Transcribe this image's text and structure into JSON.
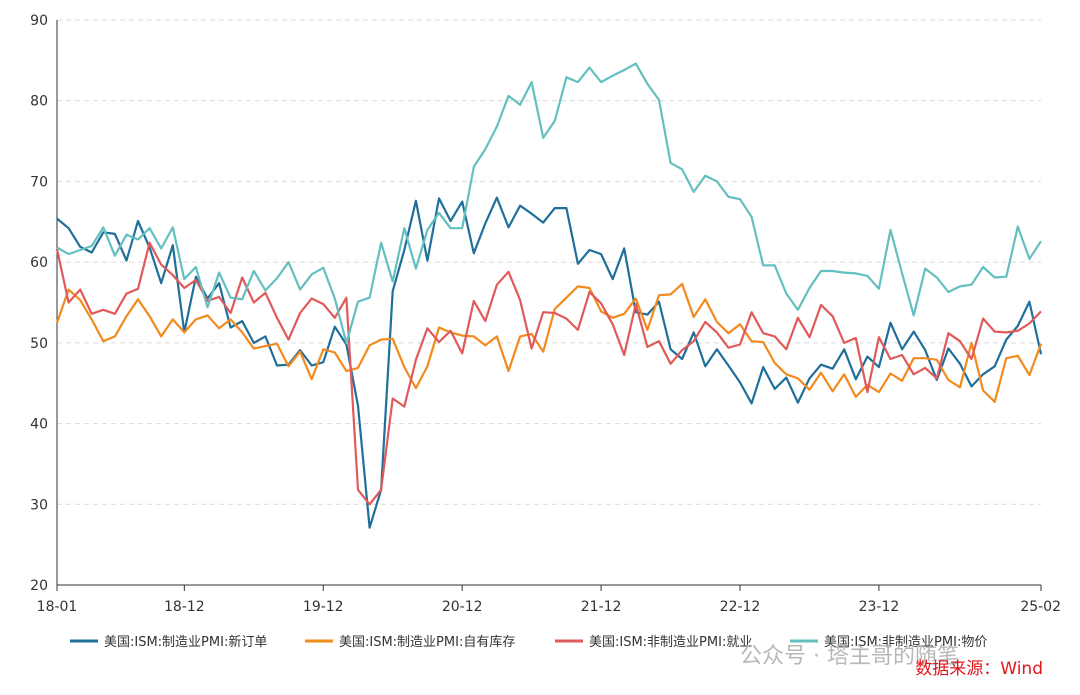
{
  "chart_data": {
    "type": "line",
    "title": "",
    "xlabel": "",
    "ylabel": "",
    "ylim": [
      20,
      90
    ],
    "y_ticks": [
      "20",
      "30",
      "40",
      "50",
      "60",
      "70",
      "80",
      "90"
    ],
    "x_tick_labels": [
      "18-01",
      "18-12",
      "19-12",
      "20-12",
      "21-12",
      "22-12",
      "23-12",
      "25-02"
    ],
    "x_tick_index": [
      0,
      11,
      23,
      35,
      47,
      59,
      71,
      85
    ],
    "grid": "horizontal-dashed",
    "legend_position": "bottom",
    "series": [
      {
        "name": "美国:ISM:制造业PMI:新订单",
        "color": "#1f6f9a",
        "values": [
          65.4,
          64.2,
          61.9,
          61.2,
          63.7,
          63.5,
          60.2,
          65.1,
          61.8,
          57.4,
          62.1,
          51.3,
          58.2,
          55.5,
          57.4,
          51.9,
          52.7,
          50.0,
          50.8,
          47.2,
          47.3,
          49.1,
          47.2,
          47.6,
          52.0,
          49.8,
          42.2,
          27.1,
          31.8,
          56.4,
          61.5,
          67.6,
          60.2,
          67.9,
          65.1,
          67.5,
          61.1,
          64.8,
          68.0,
          64.3,
          67.0,
          66.0,
          64.9,
          66.7,
          66.7,
          59.8,
          61.5,
          61.0,
          57.9,
          61.7,
          53.8,
          53.5,
          55.1,
          49.2,
          48.0,
          51.3,
          47.1,
          49.2,
          47.2,
          45.1,
          42.5,
          47.0,
          44.3,
          45.7,
          42.6,
          45.6,
          47.3,
          46.8,
          49.2,
          45.5,
          48.3,
          47.0,
          52.5,
          49.2,
          51.4,
          49.1,
          45.4,
          49.3,
          47.4,
          44.6,
          46.1,
          47.1,
          50.4,
          52.1,
          55.1,
          48.6
        ]
      },
      {
        "name": "美国:ISM:制造业PMI:自有库存",
        "color": "#f38a1d",
        "values": [
          52.5,
          56.6,
          55.3,
          52.9,
          50.2,
          50.8,
          53.3,
          55.4,
          53.3,
          50.8,
          52.9,
          51.3,
          52.9,
          53.4,
          51.8,
          52.9,
          51.3,
          49.3,
          49.6,
          49.9,
          47.1,
          48.9,
          45.5,
          49.2,
          48.8,
          46.5,
          46.9,
          49.7,
          50.4,
          50.5,
          47.0,
          44.4,
          47.1,
          51.9,
          51.3,
          50.9,
          50.8,
          49.7,
          50.8,
          46.5,
          50.8,
          51.1,
          48.9,
          54.2,
          55.6,
          57.0,
          56.8,
          53.9,
          53.1,
          53.6,
          55.5,
          51.6,
          55.9,
          56.0,
          57.3,
          53.2,
          55.4,
          52.6,
          51.2,
          52.3,
          50.2,
          50.1,
          47.5,
          46.1,
          45.6,
          44.2,
          46.3,
          44.0,
          46.1,
          43.3,
          44.8,
          43.9,
          46.2,
          45.3,
          48.1,
          48.1,
          47.9,
          45.4,
          44.5,
          50.0,
          44.1,
          42.7,
          48.1,
          48.4,
          46.0,
          49.9
        ]
      },
      {
        "name": "美国:ISM:非制造业PMI:就业",
        "color": "#e05a5b",
        "values": [
          61.6,
          55.0,
          56.6,
          53.6,
          54.1,
          53.6,
          56.1,
          56.7,
          62.4,
          59.7,
          58.4,
          56.8,
          57.8,
          55.2,
          55.7,
          53.7,
          58.1,
          55.0,
          56.2,
          53.1,
          50.4,
          53.7,
          55.5,
          54.8,
          53.1,
          55.6,
          31.8,
          30.0,
          31.8,
          43.1,
          42.1,
          47.9,
          51.8,
          50.1,
          51.5,
          48.7,
          55.2,
          52.7,
          57.2,
          58.8,
          55.3,
          49.3,
          53.8,
          53.7,
          53.0,
          51.6,
          56.3,
          54.9,
          52.3,
          48.5,
          54.8,
          49.5,
          50.2,
          47.4,
          49.1,
          50.2,
          52.6,
          51.3,
          49.4,
          49.8,
          53.8,
          51.2,
          50.8,
          49.2,
          53.1,
          50.7,
          54.7,
          53.3,
          50.0,
          50.6,
          43.9,
          50.7,
          48.0,
          48.5,
          46.1,
          46.9,
          45.6,
          51.2,
          50.2,
          48.0,
          53.0,
          51.4,
          51.3,
          51.5,
          52.4,
          53.9
        ]
      },
      {
        "name": "美国:ISM:非制造业PMI:物价",
        "color": "#63bfc0",
        "values": [
          61.8,
          61.0,
          61.5,
          62.0,
          64.3,
          60.8,
          63.4,
          62.8,
          64.2,
          61.7,
          64.3,
          57.9,
          59.4,
          54.4,
          58.7,
          55.6,
          55.4,
          58.9,
          56.5,
          58.0,
          60.0,
          56.6,
          58.5,
          59.3,
          55.5,
          50.0,
          55.1,
          55.6,
          62.4,
          57.6,
          64.2,
          59.2,
          64.0,
          66.1,
          64.2,
          64.2,
          71.8,
          74.0,
          76.8,
          80.6,
          79.5,
          82.3,
          75.4,
          77.5,
          82.9,
          82.3,
          84.1,
          82.3,
          83.1,
          83.8,
          84.6,
          82.1,
          80.1,
          72.3,
          71.5,
          68.7,
          70.7,
          70.0,
          68.1,
          67.8,
          65.6,
          59.6,
          59.6,
          56.1,
          54.1,
          56.8,
          58.9,
          58.9,
          58.7,
          58.6,
          58.3,
          56.7,
          64.0,
          58.6,
          53.4,
          59.2,
          58.1,
          56.3,
          57.0,
          57.2,
          59.4,
          58.1,
          58.2,
          64.4,
          60.4,
          62.6
        ]
      }
    ],
    "annotations": {
      "watermark": "公众号 · 塔主哥的随笔",
      "source": "数据来源：Wind"
    }
  }
}
